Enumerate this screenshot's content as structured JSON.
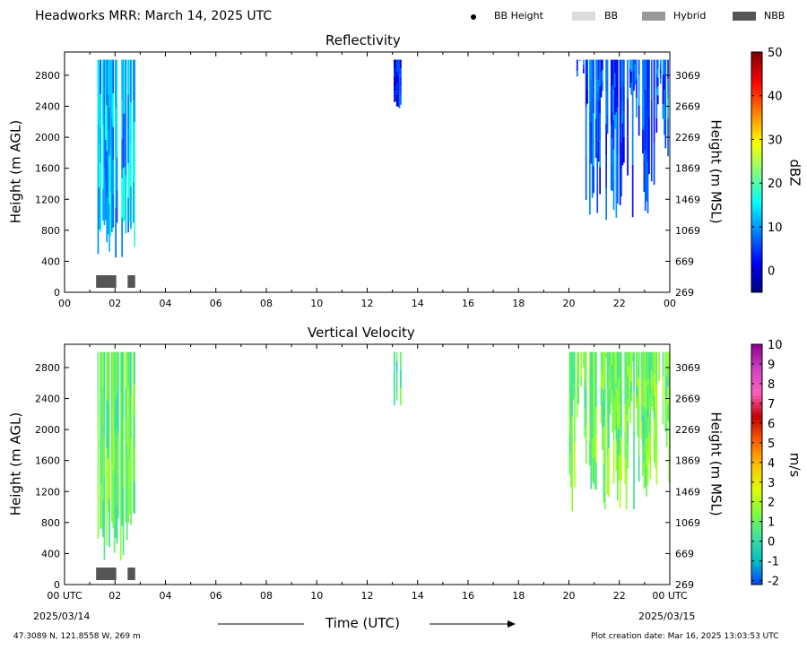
{
  "title": "Headworks MRR:  March 14, 2025 UTC",
  "legend": {
    "items": [
      {
        "label": "BB Height",
        "marker": "dot",
        "color": "#000000"
      },
      {
        "label": "BB",
        "marker": "box",
        "color": "#dcdcdc"
      },
      {
        "label": "Hybrid",
        "marker": "box",
        "color": "#999999"
      },
      {
        "label": "NBB",
        "marker": "box",
        "color": "#555555"
      }
    ]
  },
  "x_axis_label": "Time (UTC)",
  "date_start": "2025/03/14",
  "date_end": "2025/03/15",
  "footer_left": "47.3089 N, 121.8558 W, 269 m",
  "footer_right": "Plot creation date: Mar 16, 2025 13:03:53 UTC",
  "chart_data": [
    {
      "type": "heatmap",
      "title": "Reflectivity",
      "xlabel": "",
      "ylabel": "Height (m AGL)",
      "ylabel_right": "Height (m MSL)",
      "x_ticks": [
        "00",
        "02",
        "04",
        "06",
        "08",
        "10",
        "12",
        "14",
        "16",
        "18",
        "20",
        "22",
        "00"
      ],
      "x_range_hours": [
        0,
        24
      ],
      "y_ticks_left": [
        0,
        400,
        800,
        1200,
        1600,
        2000,
        2400,
        2800
      ],
      "y_ticks_right": [
        269,
        669,
        1069,
        1469,
        1869,
        2269,
        2669,
        3069
      ],
      "y_range_m_agl": [
        0,
        3100
      ],
      "colorbar": {
        "label": "dBZ",
        "ticks": [
          0,
          10,
          20,
          30,
          40,
          50
        ],
        "range": [
          -5,
          50
        ],
        "colors": [
          "#00007f",
          "#0000ff",
          "#007fff",
          "#00ffff",
          "#7fff7f",
          "#ffff00",
          "#ff7f00",
          "#ff0000",
          "#7f0000"
        ]
      },
      "precip_regions": [
        {
          "start_hr": 1.25,
          "end_hr": 2.75,
          "top_m": 3000,
          "bottom_m": 300,
          "mean_value": 12
        },
        {
          "start_hr": 13.05,
          "end_hr": 13.35,
          "top_m": 3000,
          "bottom_m": 2300,
          "mean_value": 3
        },
        {
          "start_hr": 20.0,
          "end_hr": 24.0,
          "top_m": 3000,
          "bottom_m": 900,
          "mean_value": 6
        }
      ],
      "bright_band_type": [
        {
          "start_hr": 1.25,
          "end_hr": 2.05,
          "category": "NBB"
        },
        {
          "start_hr": 2.5,
          "end_hr": 2.8,
          "category": "NBB"
        }
      ]
    },
    {
      "type": "heatmap",
      "title": "Vertical Velocity",
      "xlabel": "Time (UTC)",
      "ylabel": "Height (m AGL)",
      "ylabel_right": "Height (m MSL)",
      "x_ticks": [
        "00 UTC",
        "02",
        "04",
        "06",
        "08",
        "10",
        "12",
        "14",
        "16",
        "18",
        "20",
        "22",
        "00 UTC"
      ],
      "x_range_hours": [
        0,
        24
      ],
      "y_ticks_left": [
        0,
        400,
        800,
        1200,
        1600,
        2000,
        2400,
        2800
      ],
      "y_ticks_right": [
        269,
        669,
        1069,
        1469,
        1869,
        2269,
        2669,
        3069
      ],
      "y_range_m_agl": [
        0,
        3100
      ],
      "colorbar": {
        "label": "m/s",
        "ticks": [
          -2,
          -1,
          0,
          1,
          2,
          3,
          4,
          5,
          6,
          7,
          8,
          9,
          10
        ],
        "range": [
          -2.2,
          10
        ],
        "colors": [
          "#0040ff",
          "#00c0c0",
          "#40e0a0",
          "#80ff40",
          "#e0ff00",
          "#ffc000",
          "#ff6000",
          "#c00000",
          "#ff60c0",
          "#d040c0",
          "#900090"
        ]
      },
      "precip_regions": [
        {
          "start_hr": 1.25,
          "end_hr": 2.75,
          "top_m": 3000,
          "bottom_m": 300,
          "mean_value": 1
        },
        {
          "start_hr": 13.05,
          "end_hr": 13.35,
          "top_m": 3000,
          "bottom_m": 2300,
          "mean_value": 0.5
        },
        {
          "start_hr": 20.0,
          "end_hr": 24.0,
          "top_m": 3000,
          "bottom_m": 900,
          "mean_value": 1.2
        }
      ],
      "bright_band_type": [
        {
          "start_hr": 1.25,
          "end_hr": 2.05,
          "category": "NBB"
        },
        {
          "start_hr": 2.5,
          "end_hr": 2.8,
          "category": "NBB"
        }
      ]
    }
  ]
}
